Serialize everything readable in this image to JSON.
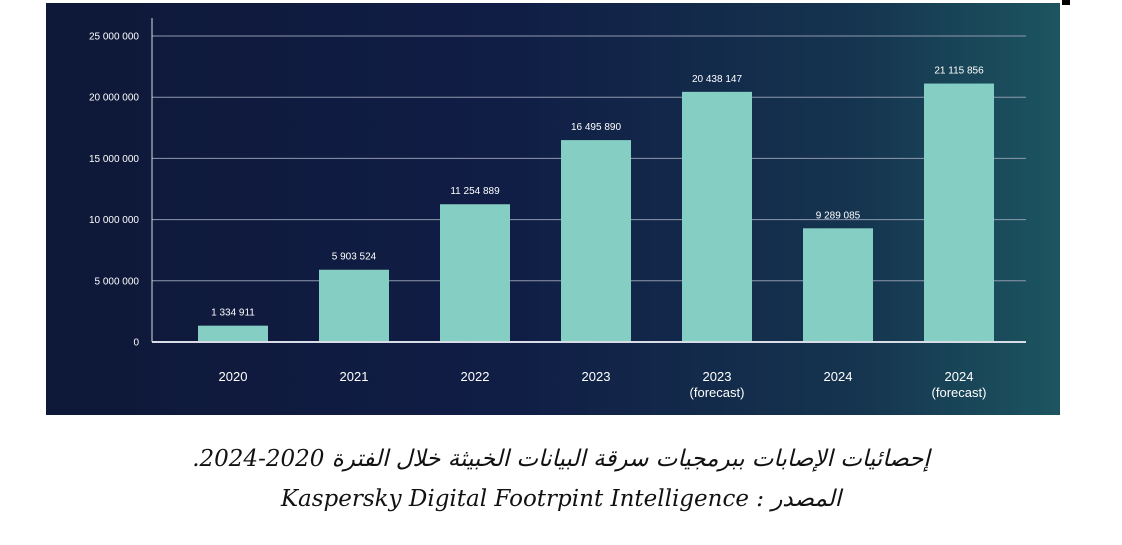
{
  "chart_data": {
    "type": "bar",
    "categories": [
      {
        "line1": "2020",
        "line2": ""
      },
      {
        "line1": "2021",
        "line2": ""
      },
      {
        "line1": "2022",
        "line2": ""
      },
      {
        "line1": "2023",
        "line2": ""
      },
      {
        "line1": "2023",
        "line2": "(forecast)"
      },
      {
        "line1": "2024",
        "line2": ""
      },
      {
        "line1": "2024",
        "line2": "(forecast)"
      }
    ],
    "values": [
      1334911,
      5903524,
      11254889,
      16495890,
      20438147,
      9289085,
      21115856
    ],
    "data_labels": [
      "1 334 911",
      "5 903 524",
      "11 254 889",
      "16 495 890",
      "20 438 147",
      "9 289 085",
      "21 115 856"
    ],
    "y_ticks": [
      {
        "value": 0,
        "label": "0"
      },
      {
        "value": 5000000,
        "label": "5 000 000"
      },
      {
        "value": 10000000,
        "label": "10 000 000"
      },
      {
        "value": 15000000,
        "label": "15 000 000"
      },
      {
        "value": 20000000,
        "label": "20 000 000"
      },
      {
        "value": 25000000,
        "label": "25 000 000"
      }
    ],
    "ylim": [
      0,
      25000000
    ],
    "grid": true,
    "bar_color": "#84cec4",
    "grid_color": "#8f98ad",
    "axis_color": "#d8dce6",
    "background_colors": [
      "#0e1838",
      "#1c5560"
    ]
  },
  "caption": {
    "line1": "إحصائيات الإصابات ببرمجيات سرقة البيانات الخبيثة خلال الفترة 2020-2024.",
    "line2": "Kaspersky Digital Footrpint Intelligence : المصدر"
  }
}
